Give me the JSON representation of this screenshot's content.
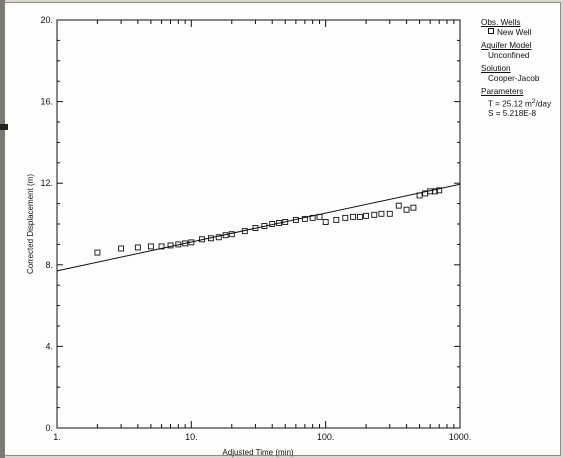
{
  "chart_data": {
    "type": "scatter",
    "xscale": "log",
    "xlim": [
      1,
      1000
    ],
    "ylim": [
      0,
      20
    ],
    "xticks": [
      "1.",
      "10.",
      "100.",
      "1000."
    ],
    "yticks": [
      "0.",
      "4.",
      "8.",
      "12.",
      "16.",
      "20."
    ],
    "xlabel": "Adjusted Time (min)",
    "ylabel": "Corrected Displacement (m)",
    "grid": false,
    "legend_position": "right",
    "series": [
      {
        "name": "New Well",
        "marker": "open-square",
        "x": [
          2.0,
          3.0,
          4.0,
          5.0,
          6.0,
          7.0,
          8.0,
          9.0,
          10.0,
          12.0,
          14.0,
          16.0,
          18.0,
          20.0,
          25.0,
          30.0,
          35.0,
          40.0,
          45.0,
          50.0,
          60.0,
          70.0,
          80.0,
          90.0,
          100.0,
          120.0,
          140.0,
          160.0,
          180.0,
          200.0,
          230.0,
          260.0,
          300.0,
          350.0,
          400.0,
          450.0,
          500.0,
          550.0,
          600.0,
          650.0,
          700.0
        ],
        "y": [
          8.6,
          8.8,
          8.85,
          8.9,
          8.9,
          8.95,
          9.0,
          9.05,
          9.1,
          9.25,
          9.3,
          9.35,
          9.45,
          9.5,
          9.65,
          9.8,
          9.9,
          10.0,
          10.05,
          10.1,
          10.2,
          10.25,
          10.3,
          10.35,
          10.1,
          10.2,
          10.3,
          10.35,
          10.35,
          10.4,
          10.45,
          10.5,
          10.5,
          10.9,
          10.7,
          10.8,
          11.4,
          11.5,
          11.6,
          11.6,
          11.65
        ]
      }
    ],
    "fit_line": {
      "name": "Cooper-Jacob",
      "x": [
        1,
        1000
      ],
      "y": [
        7.7,
        11.95
      ]
    },
    "colors": {
      "marker": "#111111",
      "line": "#111111",
      "background": "#fdfdfb"
    }
  },
  "legend": {
    "obs_wells_heading": "Obs. Wells",
    "obs_wells_item": "New Well",
    "aquifer_model_heading": "Aquifer Model",
    "aquifer_model_value": "Unconfined",
    "solution_heading": "Solution",
    "solution_value": "Cooper-Jacob",
    "parameters_heading": "Parameters",
    "param_t_prefix": "T = 25.12 m",
    "param_t_exp": "2",
    "param_t_suffix": "/day",
    "param_s": "S = 5.218E-8"
  }
}
